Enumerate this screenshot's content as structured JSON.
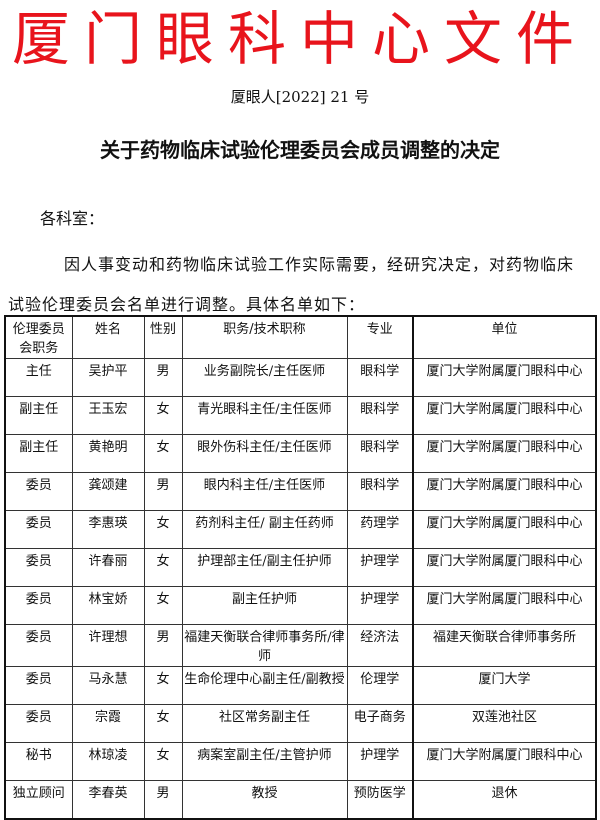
{
  "header": {
    "org_title": "厦门眼科中心文件",
    "doc_number": "厦眼人[2022] 21 号",
    "color": "#e8141c"
  },
  "title": "关于药物临床试验伦理委员会成员调整的决定",
  "salutation": "各科室：",
  "paragraph": "因人事变动和药物临床试验工作实际需要，经研究决定，对药物临床试验伦理委员会名单进行调整。具体名单如下：",
  "table": {
    "columns": [
      "伦理委员会职务",
      "姓名",
      "性别",
      "职务/技术职称",
      "专业",
      "单位"
    ],
    "rows": [
      [
        "主任",
        "吴护平",
        "男",
        "业务副院长/主任医师",
        "眼科学",
        "厦门大学附属厦门眼科中心"
      ],
      [
        "副主任",
        "王玉宏",
        "女",
        "青光眼科主任/主任医师",
        "眼科学",
        "厦门大学附属厦门眼科中心"
      ],
      [
        "副主任",
        "黄艳明",
        "女",
        "眼外伤科主任/主任医师",
        "眼科学",
        "厦门大学附属厦门眼科中心"
      ],
      [
        "委员",
        "龚颂建",
        "男",
        "眼内科主任/主任医师",
        "眼科学",
        "厦门大学附属厦门眼科中心"
      ],
      [
        "委员",
        "李惠瑛",
        "女",
        "药剂科主任/ 副主任药师",
        "药理学",
        "厦门大学附属厦门眼科中心"
      ],
      [
        "委员",
        "许春丽",
        "女",
        "护理部主任/副主任护师",
        "护理学",
        "厦门大学附属厦门眼科中心"
      ],
      [
        "委员",
        "林宝娇",
        "女",
        "副主任护师",
        "护理学",
        "厦门大学附属厦门眼科中心"
      ],
      [
        "委员",
        "许理想",
        "男",
        "福建天衡联合律师事务所/律师",
        "经济法",
        "福建天衡联合律师事务所"
      ],
      [
        "委员",
        "马永慧",
        "女",
        "生命伦理中心副主任/副教授",
        "伦理学",
        "厦门大学"
      ],
      [
        "委员",
        "宗霞",
        "女",
        "社区常务副主任",
        "电子商务",
        "双莲池社区"
      ],
      [
        "秘书",
        "林琼凌",
        "女",
        "病案室副主任/主管护师",
        "护理学",
        "厦门大学附属厦门眼科中心"
      ],
      [
        "独立顾问",
        "李春英",
        "男",
        "教授",
        "预防医学",
        "退休"
      ]
    ]
  }
}
